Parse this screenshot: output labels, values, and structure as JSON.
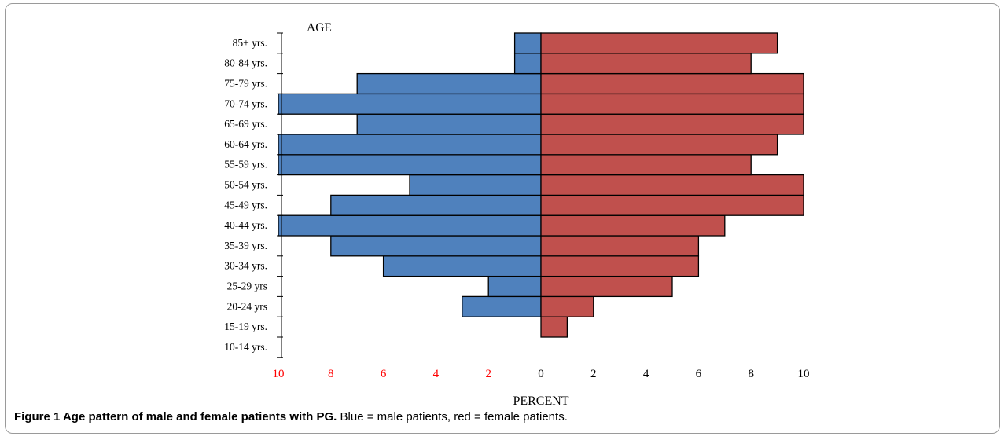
{
  "chart_data": {
    "type": "bar",
    "orientation": "horizontal-population-pyramid",
    "ylabel": "AGE",
    "xlabel": "PERCENT",
    "categories": [
      "10-14 yrs.",
      "15-19 yrs.",
      "20-24 yrs",
      "25-29 yrs",
      "30-34 yrs.",
      "35-39 yrs.",
      "40-44 yrs.",
      "45-49 yrs.",
      "50-54 yrs.",
      "55-59 yrs.",
      "60-64 yrs.",
      "65-69 yrs.",
      "70-74 yrs.",
      "75-79 yrs.",
      "80-84 yrs.",
      "85+ yrs."
    ],
    "series": [
      {
        "color": "#4f81bd",
        "side": "left",
        "values": [
          0,
          0,
          3,
          2,
          6,
          8,
          10,
          8,
          5,
          10,
          10,
          7,
          10,
          7,
          1,
          1
        ]
      },
      {
        "color": "#c0504d",
        "side": "right",
        "values": [
          0,
          1,
          2,
          5,
          6,
          6,
          7,
          10,
          10,
          8,
          9,
          10,
          10,
          10,
          8,
          9
        ]
      }
    ],
    "left_ticks": [
      "10",
      "8",
      "6",
      "4",
      "2"
    ],
    "right_ticks": [
      "0",
      "2",
      "4",
      "6",
      "8",
      "10"
    ],
    "left_tick_color": "#ff0000",
    "xlim": [
      0,
      10
    ]
  },
  "caption": {
    "bold": "Figure 1 Age pattern of male and female patients with PG.",
    "text": " Blue = male patients, red = female patients."
  }
}
